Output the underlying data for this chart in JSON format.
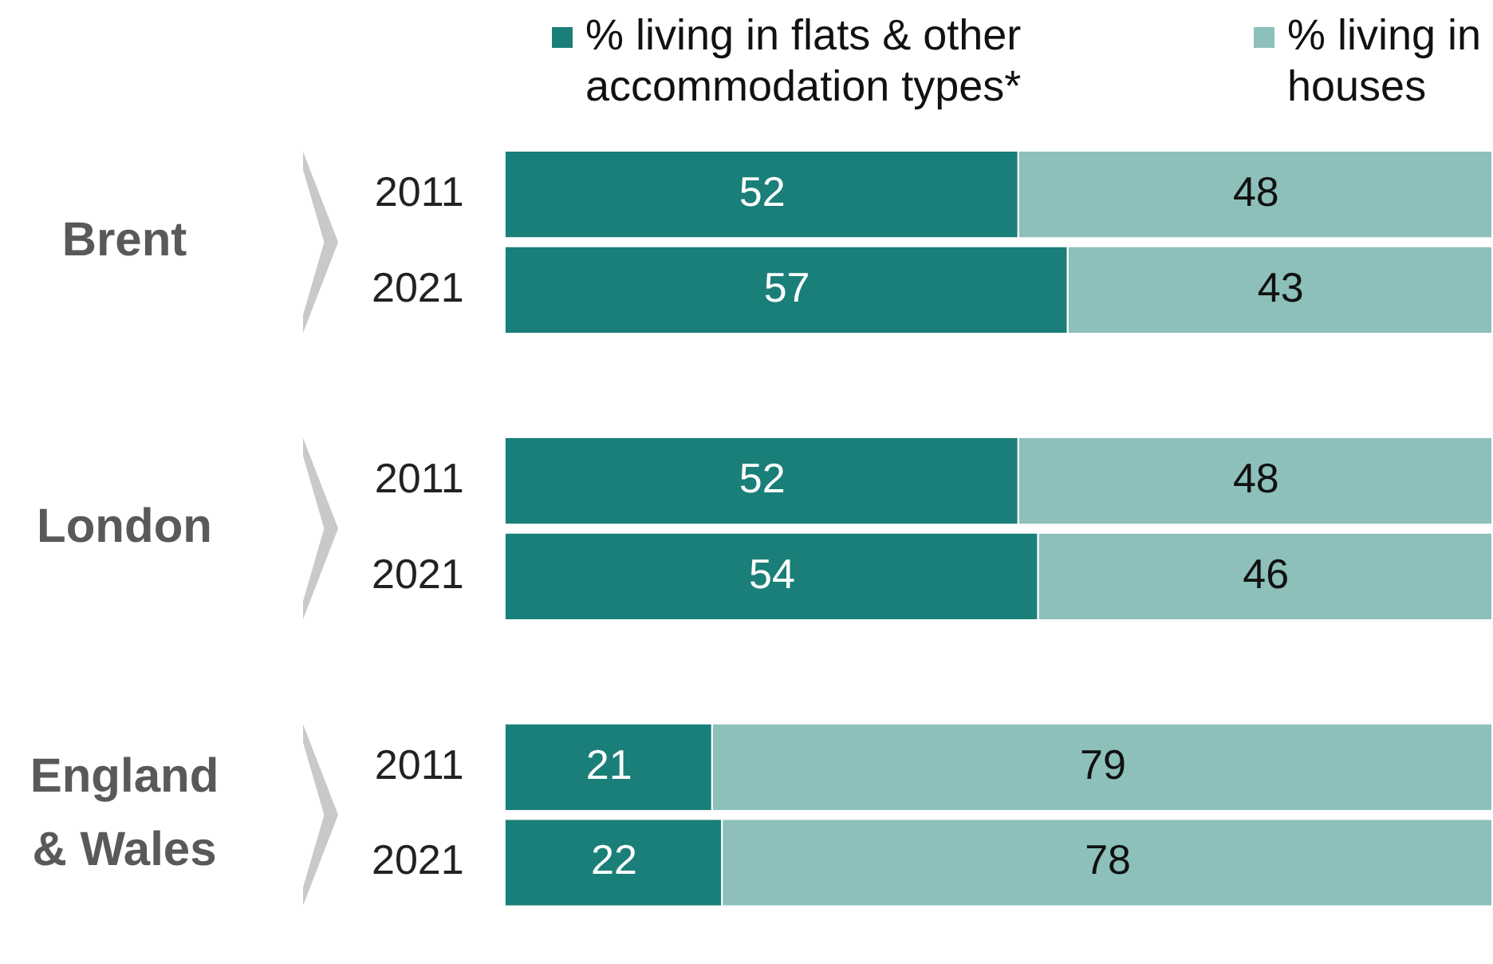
{
  "chart_data": {
    "type": "bar",
    "orientation": "horizontal",
    "stacked": true,
    "categories": [
      "2011",
      "2021",
      null,
      "2011",
      "2021",
      null,
      "2011",
      "2021"
    ],
    "series": [
      {
        "name": "% living in flats & other accommodation types*",
        "color": "#1a7f78",
        "values": [
          52,
          57,
          null,
          52,
          54,
          null,
          21,
          22
        ]
      },
      {
        "name": "% living in houses",
        "color": "#8dc0bb",
        "values": [
          48,
          43,
          null,
          48,
          46,
          null,
          79,
          78
        ]
      }
    ],
    "xlim": [
      0,
      100
    ],
    "tick_labels": "y",
    "legend": "top right",
    "data_labels": true,
    "annotations": [
      "Brent",
      "London",
      "England & Wales"
    ]
  }
}
